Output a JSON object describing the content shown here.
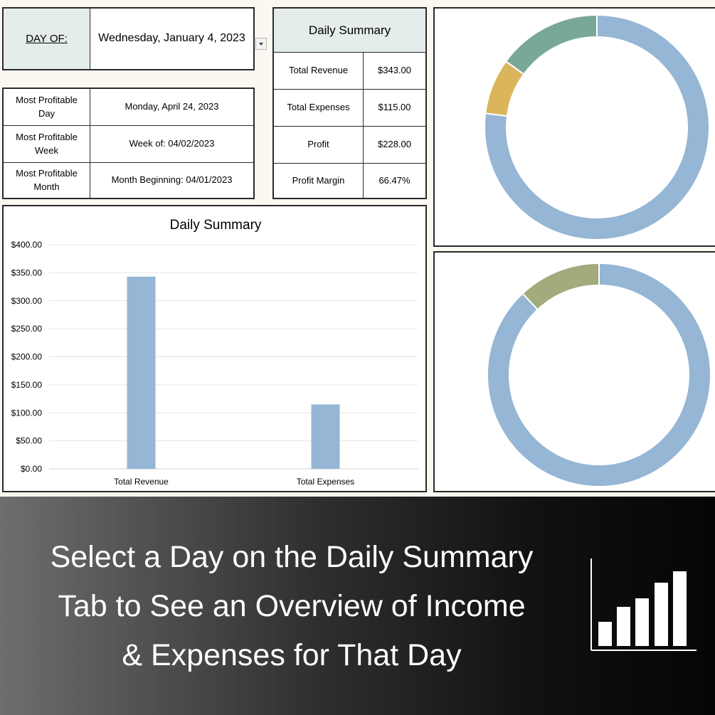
{
  "day_selector": {
    "label": "DAY OF:",
    "value": "Wednesday, January 4, 2023",
    "dropdown_icon": "chevron-down-icon"
  },
  "best": [
    {
      "label": "Most Profitable Day",
      "value": "Monday, April 24, 2023"
    },
    {
      "label": "Most Profitable Week",
      "value": "Week of: 04/02/2023"
    },
    {
      "label": "Most Profitable Month",
      "value": "Month Beginning: 04/01/2023"
    }
  ],
  "summary_table": {
    "title": "Daily Summary",
    "rows": [
      {
        "label": "Total Revenue",
        "value": "$343.00"
      },
      {
        "label": "Total Expenses",
        "value": "$115.00"
      },
      {
        "label": "Profit",
        "value": "$228.00"
      },
      {
        "label": "Profit Margin",
        "value": "66.47%"
      }
    ]
  },
  "chart_data": [
    {
      "type": "bar",
      "title": "Daily Summary",
      "categories": [
        "Total Revenue",
        "Total Expenses"
      ],
      "values": [
        343,
        115
      ],
      "ylim": [
        0,
        400
      ],
      "yticks": [
        "$0.00",
        "$50.00",
        "$100.00",
        "$150.00",
        "$200.00",
        "$250.00",
        "$300.00",
        "$350.00",
        "$400.00"
      ],
      "grid": true,
      "color": "#95b6d4"
    },
    {
      "type": "pie",
      "hole": true,
      "values": [
        77,
        8,
        15
      ],
      "colors": [
        "#95b6d4",
        "#dbb55c",
        "#7aa898"
      ]
    },
    {
      "type": "pie",
      "hole": true,
      "values": [
        88,
        12
      ],
      "colors": [
        "#95b6d4",
        "#a3aa7c"
      ]
    }
  ],
  "banner": {
    "lines": [
      "Select a Day on the Daily Summary",
      "Tab to See an Overview of Income",
      "& Expenses for That Day"
    ],
    "icon": "bar-chart-icon"
  },
  "colors": {
    "header_fill": "#e4ecec",
    "bar": "#95b6d4",
    "panel_bg": "#fbf7f1"
  }
}
